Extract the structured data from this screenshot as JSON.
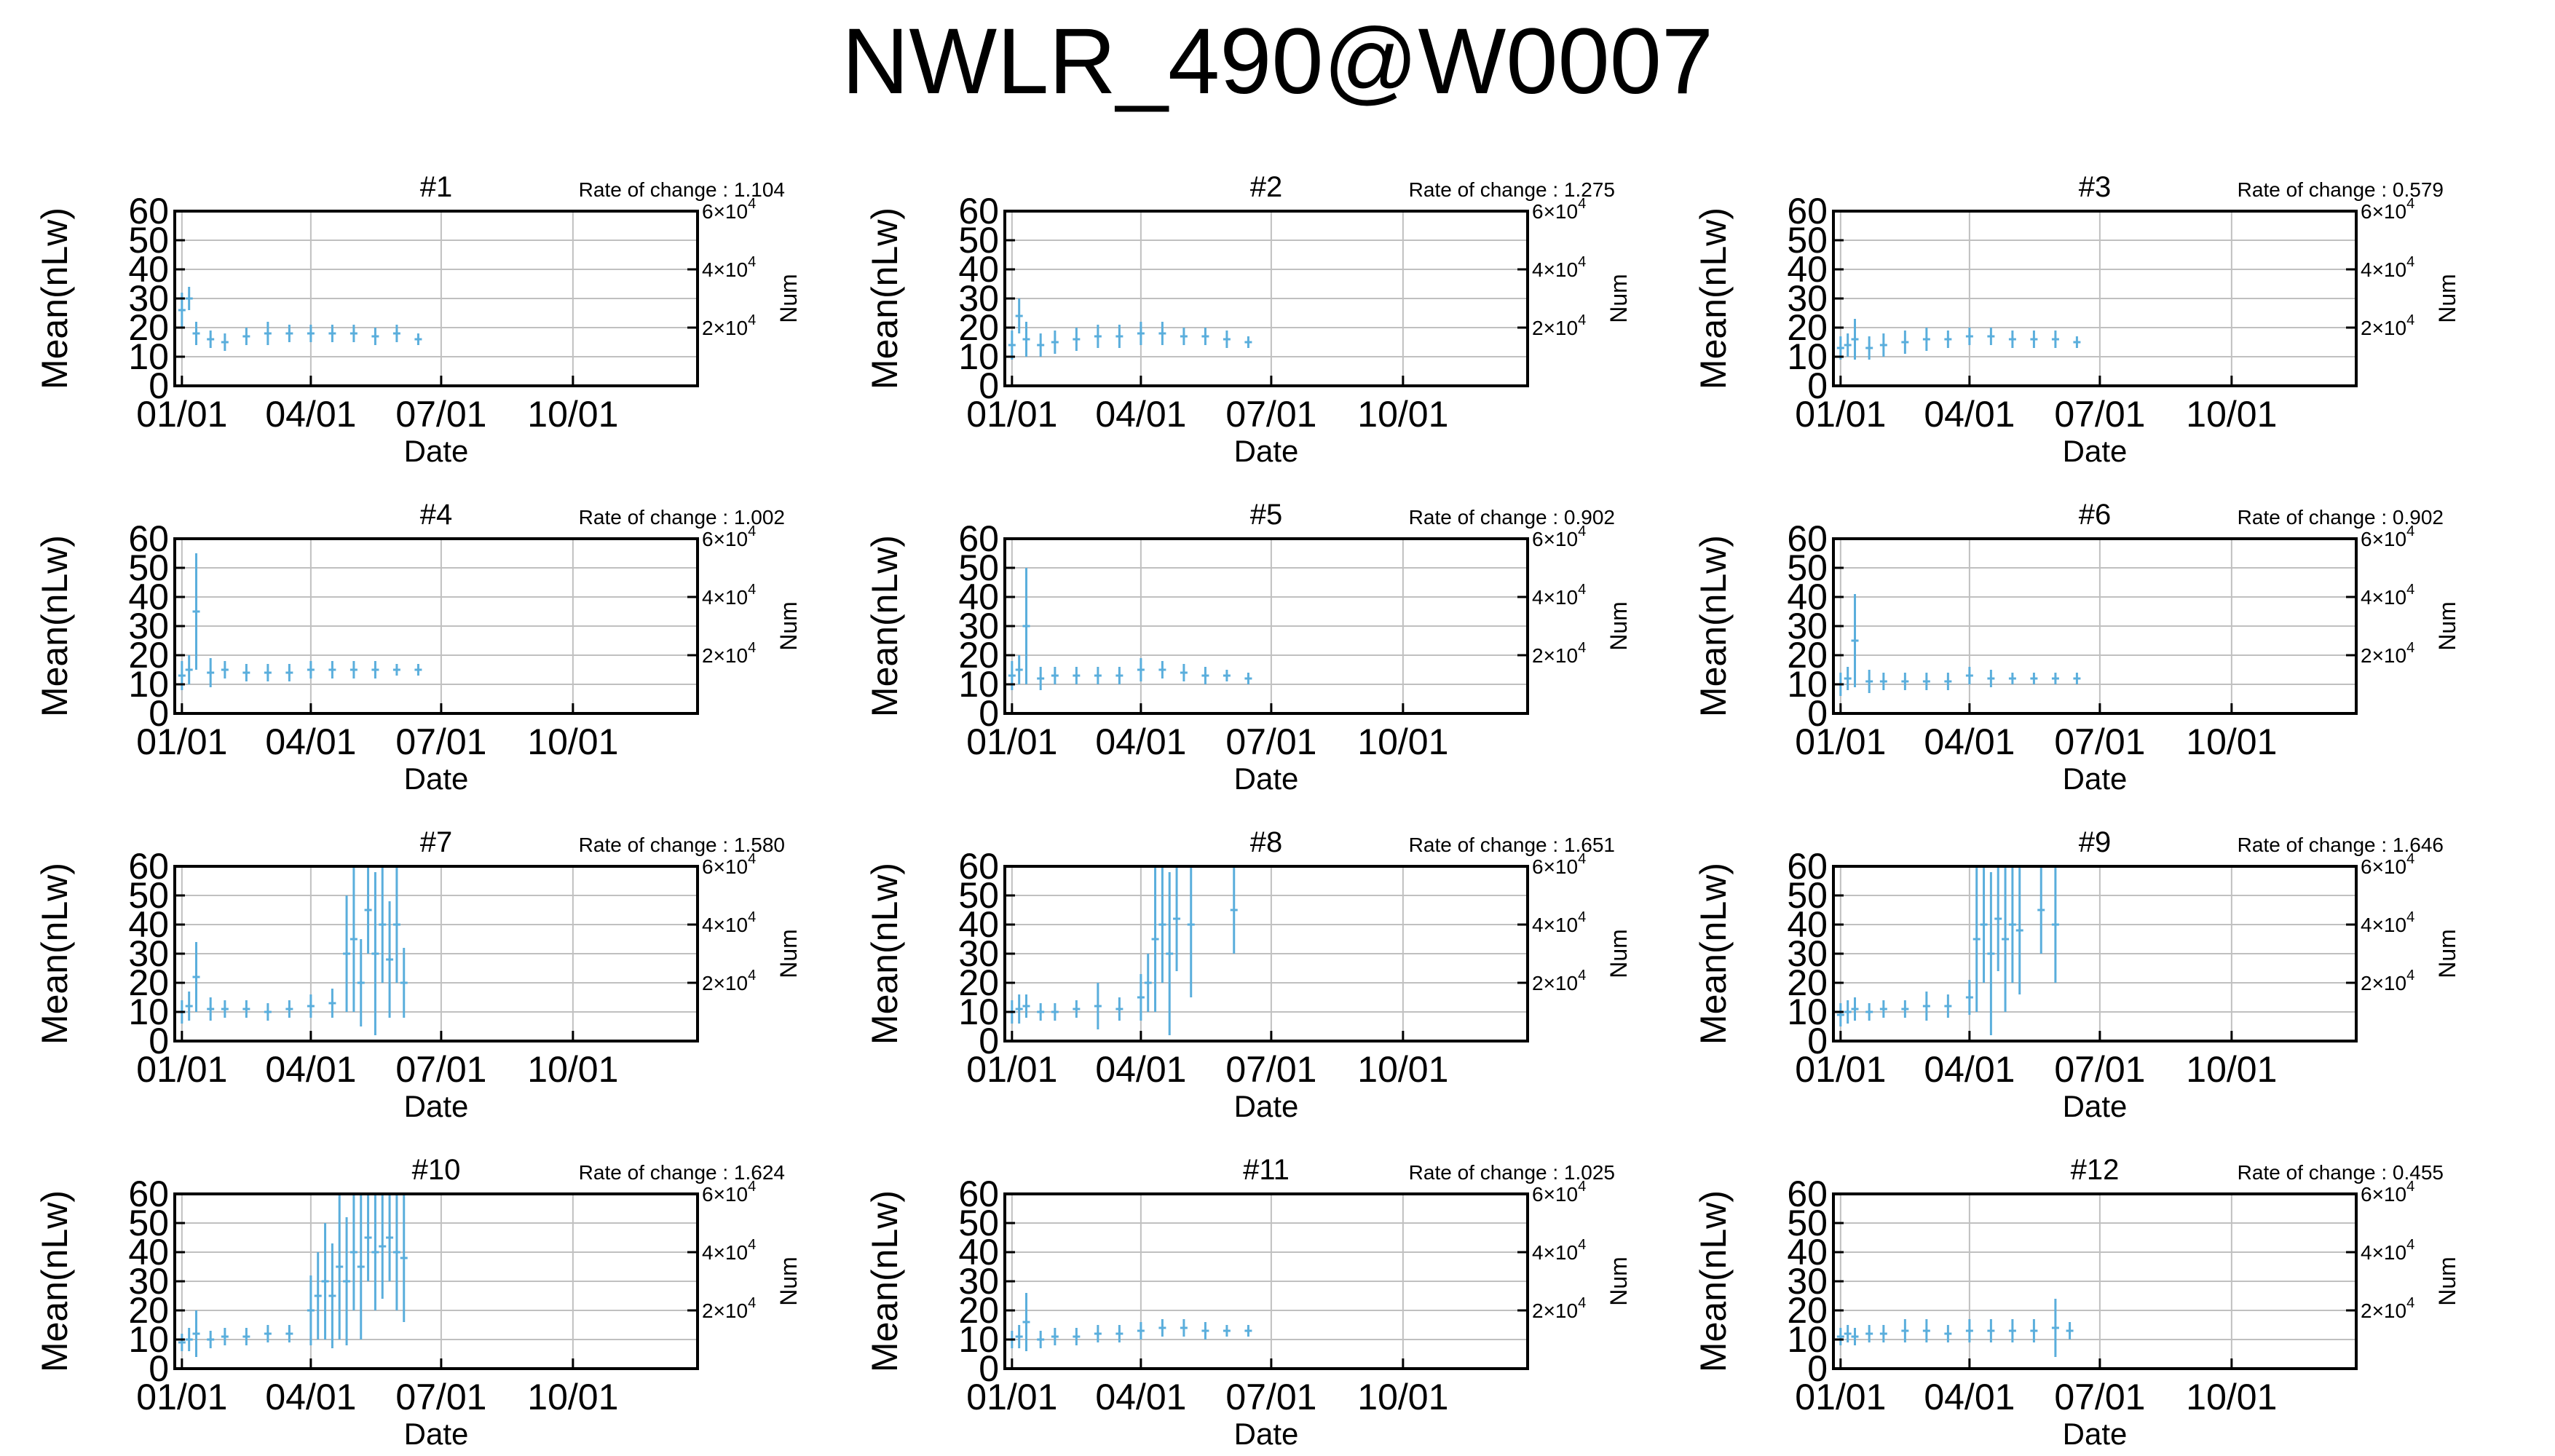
{
  "title": "NWLR_490@W0007",
  "axes": {
    "ylabel": "Mean(nLw)",
    "xlabel": "Date",
    "y2label": "Num",
    "yticks": [
      "0",
      "10",
      "20",
      "30",
      "40",
      "50",
      "60"
    ],
    "ylim": [
      0,
      60
    ],
    "xticks": [
      "01/01",
      "04/01",
      "07/01",
      "10/01"
    ],
    "xtick_days": [
      0,
      90,
      181,
      273
    ],
    "xlim_days": [
      -5,
      360
    ],
    "y2ticks": [
      {
        "base": "2×10",
        "exp": "4",
        "value": 20000
      },
      {
        "base": "4×10",
        "exp": "4",
        "value": 40000
      },
      {
        "base": "6×10",
        "exp": "4",
        "value": 60000
      }
    ],
    "y2lim": [
      0,
      60000
    ],
    "grid": true
  },
  "colors": {
    "series": "#5aaedc",
    "axis": "#000000",
    "grid": "#c0c0c0"
  },
  "chart_data": [
    {
      "type": "scatter",
      "panel": "#1",
      "rate_label": "Rate of change : 1.104",
      "series": [
        {
          "x_days": [
            0,
            5,
            10,
            20,
            30,
            45,
            60,
            75,
            90,
            105,
            120,
            135,
            150,
            165
          ],
          "y_mean": [
            26,
            30,
            18,
            16,
            15,
            17,
            18,
            18,
            18,
            18,
            18,
            17,
            18,
            16
          ],
          "y_spread": [
            6,
            4,
            4,
            3,
            3,
            3,
            4,
            3,
            3,
            3,
            3,
            3,
            3,
            2
          ]
        }
      ]
    },
    {
      "type": "scatter",
      "panel": "#2",
      "rate_label": "Rate of change : 1.275",
      "series": [
        {
          "x_days": [
            0,
            5,
            10,
            20,
            30,
            45,
            60,
            75,
            90,
            105,
            120,
            135,
            150,
            165
          ],
          "y_mean": [
            14,
            24,
            16,
            14,
            15,
            16,
            17,
            17,
            18,
            18,
            17,
            17,
            16,
            15
          ],
          "y_spread": [
            5,
            6,
            6,
            4,
            4,
            4,
            4,
            4,
            4,
            4,
            3,
            3,
            3,
            2
          ]
        }
      ]
    },
    {
      "type": "scatter",
      "panel": "#3",
      "rate_label": "Rate of change : 0.579",
      "series": [
        {
          "x_days": [
            0,
            5,
            10,
            20,
            30,
            45,
            60,
            75,
            90,
            105,
            120,
            135,
            150,
            165
          ],
          "y_mean": [
            13,
            14,
            16,
            13,
            14,
            15,
            16,
            16,
            17,
            17,
            16,
            16,
            16,
            15
          ],
          "y_spread": [
            4,
            4,
            7,
            4,
            4,
            4,
            4,
            3,
            3,
            3,
            3,
            3,
            3,
            2
          ]
        }
      ]
    },
    {
      "type": "scatter",
      "panel": "#4",
      "rate_label": "Rate of change : 1.002",
      "series": [
        {
          "x_days": [
            0,
            5,
            10,
            20,
            30,
            45,
            60,
            75,
            90,
            105,
            120,
            135,
            150,
            165
          ],
          "y_mean": [
            13,
            15,
            35,
            14,
            15,
            14,
            14,
            14,
            15,
            15,
            15,
            15,
            15,
            15
          ],
          "y_spread": [
            5,
            5,
            20,
            5,
            3,
            3,
            3,
            3,
            3,
            3,
            3,
            3,
            2,
            2
          ]
        }
      ]
    },
    {
      "type": "scatter",
      "panel": "#5",
      "rate_label": "Rate of change : 0.902",
      "series": [
        {
          "x_days": [
            0,
            5,
            10,
            20,
            30,
            45,
            60,
            75,
            90,
            105,
            120,
            135,
            150,
            165
          ],
          "y_mean": [
            13,
            15,
            30,
            12,
            13,
            13,
            13,
            13,
            15,
            15,
            14,
            13,
            13,
            12
          ],
          "y_spread": [
            5,
            5,
            20,
            4,
            3,
            3,
            3,
            3,
            4,
            3,
            3,
            3,
            2,
            2
          ]
        }
      ]
    },
    {
      "type": "scatter",
      "panel": "#6",
      "rate_label": "Rate of change : 0.902",
      "series": [
        {
          "x_days": [
            0,
            5,
            10,
            20,
            30,
            45,
            60,
            75,
            90,
            105,
            120,
            135,
            150,
            165
          ],
          "y_mean": [
            10,
            12,
            25,
            11,
            11,
            11,
            11,
            11,
            13,
            12,
            12,
            12,
            12,
            12
          ],
          "y_spread": [
            4,
            4,
            16,
            4,
            3,
            3,
            3,
            3,
            3,
            3,
            2,
            2,
            2,
            2
          ]
        }
      ]
    },
    {
      "type": "scatter",
      "panel": "#7",
      "rate_label": "Rate of change : 1.580",
      "series": [
        {
          "x_days": [
            0,
            5,
            10,
            20,
            30,
            45,
            60,
            75,
            90,
            105,
            115,
            120,
            125,
            130,
            135,
            140,
            145,
            150,
            155
          ],
          "y_mean": [
            10,
            12,
            22,
            11,
            11,
            11,
            10,
            11,
            12,
            13,
            30,
            35,
            20,
            45,
            30,
            40,
            28,
            40,
            20
          ],
          "y_spread": [
            4,
            5,
            12,
            4,
            3,
            3,
            3,
            3,
            4,
            5,
            20,
            25,
            15,
            15,
            28,
            20,
            20,
            20,
            12
          ]
        }
      ]
    },
    {
      "type": "scatter",
      "panel": "#8",
      "rate_label": "Rate of change : 1.651",
      "series": [
        {
          "x_days": [
            0,
            5,
            10,
            20,
            30,
            45,
            60,
            75,
            90,
            95,
            100,
            105,
            110,
            115,
            125,
            155
          ],
          "y_mean": [
            10,
            11,
            12,
            10,
            10,
            11,
            12,
            11,
            15,
            20,
            35,
            40,
            30,
            42,
            40,
            45
          ],
          "y_spread": [
            4,
            5,
            4,
            3,
            3,
            3,
            8,
            4,
            8,
            10,
            25,
            20,
            28,
            18,
            25,
            15
          ]
        }
      ]
    },
    {
      "type": "scatter",
      "panel": "#9",
      "rate_label": "Rate of change : 1.646",
      "series": [
        {
          "x_days": [
            0,
            5,
            10,
            20,
            30,
            45,
            60,
            75,
            90,
            95,
            100,
            105,
            110,
            115,
            120,
            125,
            140,
            150
          ],
          "y_mean": [
            9,
            10,
            11,
            10,
            11,
            11,
            12,
            12,
            15,
            35,
            40,
            30,
            42,
            35,
            40,
            38,
            45,
            40
          ],
          "y_spread": [
            4,
            4,
            4,
            3,
            3,
            3,
            5,
            4,
            6,
            25,
            20,
            28,
            18,
            25,
            20,
            22,
            15,
            20
          ]
        }
      ]
    },
    {
      "type": "scatter",
      "panel": "#10",
      "rate_label": "Rate of change : 1.624",
      "series": [
        {
          "x_days": [
            0,
            5,
            10,
            20,
            30,
            45,
            60,
            75,
            90,
            95,
            100,
            105,
            110,
            115,
            120,
            125,
            130,
            135,
            140,
            145,
            150,
            155
          ],
          "y_mean": [
            9,
            10,
            12,
            10,
            11,
            11,
            12,
            12,
            20,
            25,
            30,
            25,
            35,
            30,
            40,
            35,
            45,
            40,
            42,
            45,
            40,
            38
          ],
          "y_spread": [
            3,
            4,
            8,
            3,
            3,
            3,
            3,
            3,
            12,
            15,
            20,
            18,
            25,
            22,
            20,
            25,
            15,
            20,
            18,
            15,
            20,
            22
          ]
        }
      ]
    },
    {
      "type": "scatter",
      "panel": "#11",
      "rate_label": "Rate of change : 1.025",
      "series": [
        {
          "x_days": [
            0,
            5,
            10,
            20,
            30,
            45,
            60,
            75,
            90,
            105,
            120,
            135,
            150,
            165
          ],
          "y_mean": [
            10,
            11,
            16,
            10,
            11,
            11,
            12,
            12,
            13,
            14,
            14,
            13,
            13,
            13
          ],
          "y_spread": [
            3,
            4,
            10,
            3,
            3,
            3,
            3,
            3,
            3,
            3,
            3,
            3,
            2,
            2
          ]
        }
      ]
    },
    {
      "type": "scatter",
      "panel": "#12",
      "rate_label": "Rate of change : 0.455",
      "series": [
        {
          "x_days": [
            0,
            5,
            10,
            20,
            30,
            45,
            60,
            75,
            90,
            105,
            120,
            135,
            150,
            160
          ],
          "y_mean": [
            11,
            12,
            11,
            12,
            12,
            13,
            13,
            12,
            13,
            13,
            13,
            13,
            14,
            13
          ],
          "y_spread": [
            3,
            3,
            3,
            3,
            3,
            4,
            4,
            3,
            4,
            4,
            4,
            4,
            10,
            3
          ]
        }
      ]
    }
  ]
}
